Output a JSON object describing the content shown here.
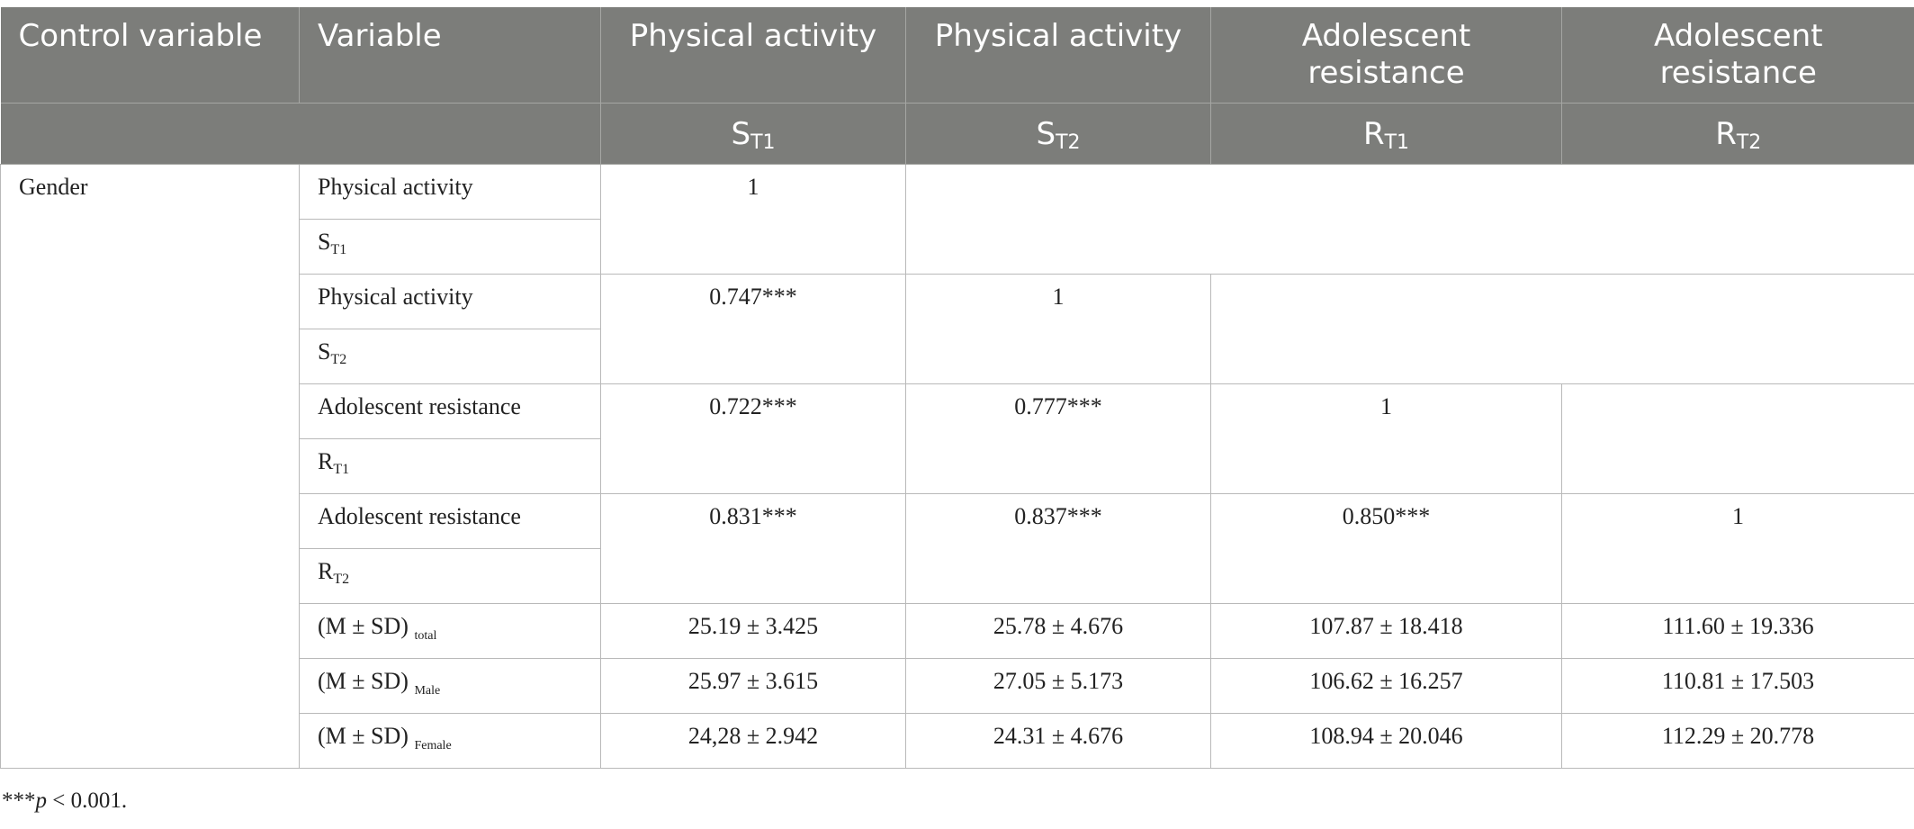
{
  "header": {
    "row1": [
      "Control variable",
      "Variable",
      "Physical activity",
      "Physical activity",
      "Adolescent resistance",
      "Adolescent resistance"
    ],
    "row2": [
      {
        "base": "S",
        "sub": "T1"
      },
      {
        "base": "S",
        "sub": "T2"
      },
      {
        "base": "R",
        "sub": "T1"
      },
      {
        "base": "R",
        "sub": "T2"
      }
    ]
  },
  "control_variable": "Gender",
  "variables": [
    {
      "name": "Physical activity",
      "code_base": "S",
      "code_sub": "T1",
      "values": [
        "1"
      ]
    },
    {
      "name": "Physical activity",
      "code_base": "S",
      "code_sub": "T2",
      "values": [
        "0.747***",
        "1"
      ]
    },
    {
      "name": "Adolescent resistance",
      "code_base": "R",
      "code_sub": "T1",
      "values": [
        "0.722***",
        "0.777***",
        "1"
      ]
    },
    {
      "name": "Adolescent resistance",
      "code_base": "R",
      "code_sub": "T2",
      "values": [
        "0.831***",
        "0.837***",
        "0.850***",
        "1"
      ]
    }
  ],
  "stats": [
    {
      "label": "(M ± SD)",
      "sub": "total",
      "values": [
        "25.19 ± 3.425",
        "25.78 ± 4.676",
        "107.87 ± 18.418",
        "111.60 ± 19.336"
      ]
    },
    {
      "label": "(M ± SD)",
      "sub": "Male",
      "values": [
        "25.97 ± 3.615",
        "27.05 ± 5.173",
        "106.62 ± 16.257",
        "110.81 ± 17.503"
      ]
    },
    {
      "label": "(M ± SD)",
      "sub": "Female",
      "values": [
        "24,28 ± 2.942",
        "24.31 ± 4.676",
        "108.94 ± 20.046",
        "112.29 ± 20.778"
      ]
    }
  ],
  "footnote": {
    "stars": "***",
    "p": "p",
    "rest": " < 0.001."
  }
}
